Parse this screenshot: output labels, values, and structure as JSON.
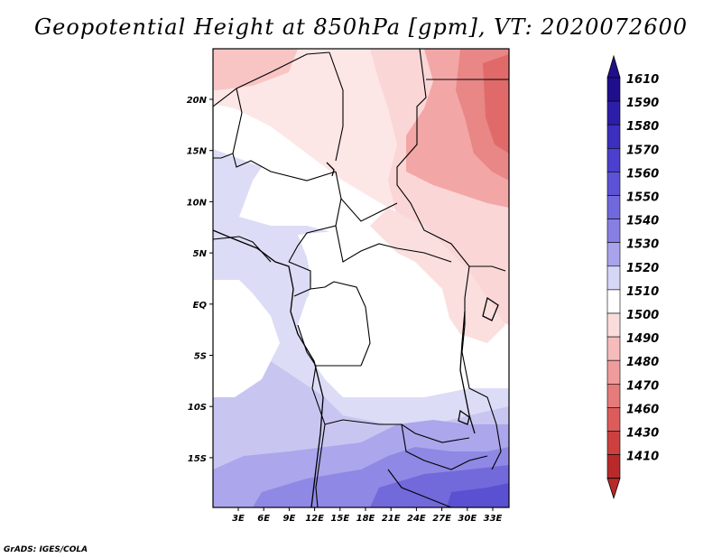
{
  "title": "Geopotential Height at 850hPa [gpm], VT: 2020072600",
  "credit": "GrADS: IGES/COLA",
  "map": {
    "lon_labels": [
      "3E",
      "6E",
      "9E",
      "12E",
      "15E",
      "18E",
      "21E",
      "24E",
      "27E",
      "30E",
      "33E"
    ],
    "lat_labels": [
      "20N",
      "15N",
      "10N",
      "5N",
      "EQ",
      "5S",
      "10S",
      "15S"
    ]
  },
  "colorbar": {
    "labels": [
      "1610",
      "1590",
      "1580",
      "1570",
      "1560",
      "1550",
      "1540",
      "1530",
      "1520",
      "1510",
      "1500",
      "1490",
      "1480",
      "1470",
      "1460",
      "1430",
      "1410"
    ],
    "colors": [
      "#1f0f8c",
      "#2d1ea8",
      "#3c2fbe",
      "#4b3fcd",
      "#5c52d6",
      "#7068dc",
      "#877fe2",
      "#a8a3eb",
      "#d6d6f6",
      "#ffffff",
      "#fbdcdc",
      "#f6bcbc",
      "#ee9c9c",
      "#e57b7b",
      "#dc5c5c",
      "#cc4040",
      "#b82a2a"
    ]
  }
}
